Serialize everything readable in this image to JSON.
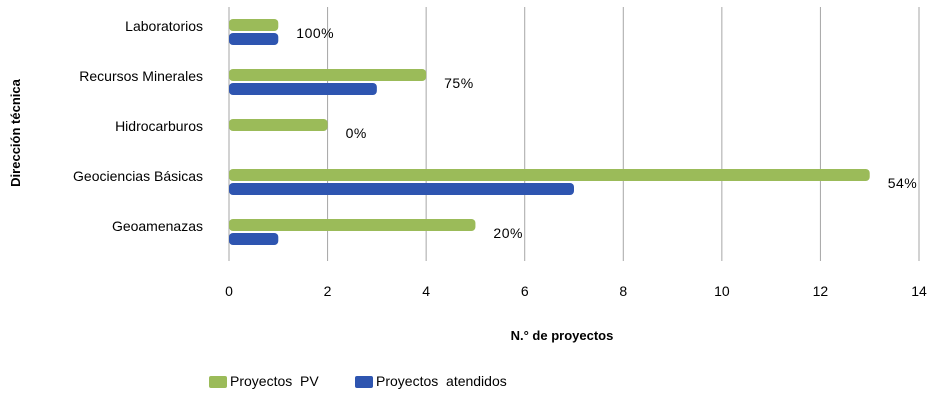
{
  "chart_data": {
    "type": "bar",
    "orientation": "horizontal",
    "categories": [
      "Laboratorios",
      "Recursos Minerales",
      "Hidrocarburos",
      "Geociencias Básicas",
      "Geoamenazas"
    ],
    "series": [
      {
        "name": "Proyectos  PV",
        "color": "#9bbb59",
        "values": [
          1,
          4,
          2,
          13,
          5
        ]
      },
      {
        "name": "Proyectos  atendidos",
        "color": "#2e55b0",
        "values": [
          1,
          3,
          0,
          7,
          1
        ]
      }
    ],
    "percent_labels": [
      "100%",
      "75%",
      "0%",
      "54%",
      "20%"
    ],
    "xlabel": "N.° de proyectos",
    "ylabel": "Dirección técnica",
    "xlim": [
      0,
      14
    ],
    "xticks": [
      0,
      2,
      4,
      6,
      8,
      10,
      12,
      14
    ],
    "grid": "vertical",
    "legend_position": "bottom"
  }
}
